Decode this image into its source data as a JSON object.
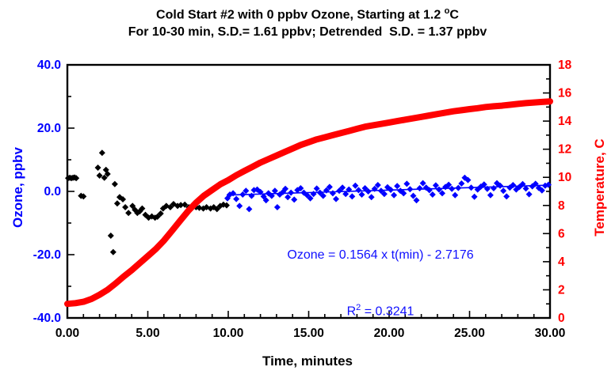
{
  "title": {
    "line1_text": "Cold Start #2 with 0 ppbv Ozone, Starting at 1.2 ",
    "line1_sup": "o",
    "line1_unit": "C",
    "line2": "For 10-30 min, S.D.= 1.61 ppbv; Detrended  S.D. = 1.37 ppbv"
  },
  "annotation": {
    "line1": "Ozone = 0.1564 x t(min) - 2.7176",
    "r_label": "R",
    "r_sup": "2",
    "r_rest": " = 0.3241"
  },
  "colors": {
    "ozone_blue": "#0000ff",
    "temperature_red": "#ff0000",
    "early_ozone_black": "#000000",
    "frame_black": "#000000"
  },
  "chart_data": {
    "type": "scatter",
    "title": "Cold Start #2 with 0 ppbv Ozone, Starting at 1.2 °C",
    "subtitle": "For 10-30 min, S.D.= 1.61 ppbv; Detrended  S.D. = 1.37 ppbv",
    "xlabel": "Time, minutes",
    "ylabel_left": "Ozone, ppbv",
    "ylabel_right": "Temperature, C",
    "xlim": [
      0,
      30
    ],
    "ylim_left": [
      -40,
      40
    ],
    "ylim_right": [
      0,
      18
    ],
    "grid": false,
    "legend": false,
    "x_major_ticks": [
      0,
      5,
      10,
      15,
      20,
      25,
      30
    ],
    "x_tick_labels": [
      "0.00",
      "5.00",
      "10.00",
      "15.00",
      "20.00",
      "25.00",
      "30.00"
    ],
    "x_minor_step": 1,
    "y_left_major_ticks": [
      40,
      20,
      0,
      -20,
      -40
    ],
    "y_left_tick_labels": [
      "40.0",
      "20.0",
      "0.0",
      "-20.0",
      "-40.0"
    ],
    "y_left_minor_step": 10,
    "y_right_major_ticks": [
      18,
      16,
      14,
      12,
      10,
      8,
      6,
      4,
      2,
      0
    ],
    "y_right_tick_labels": [
      "18",
      "16",
      "14",
      "12",
      "10",
      "8",
      "6",
      "4",
      "2",
      "0"
    ],
    "y_right_minor_step": 1,
    "series": [
      {
        "name": "ozone-0-10-min",
        "type": "scatter",
        "marker": "diamond",
        "marker_size": 4,
        "color": "#000000",
        "axis": "left",
        "points": [
          [
            0.05,
            4.2
          ],
          [
            0.15,
            4.3
          ],
          [
            0.25,
            4.2
          ],
          [
            0.35,
            4.3
          ],
          [
            0.45,
            4.4
          ],
          [
            0.55,
            4.2
          ],
          [
            0.85,
            -1.4
          ],
          [
            1.0,
            -1.6
          ],
          [
            1.9,
            7.5
          ],
          [
            2.0,
            5.0
          ],
          [
            2.16,
            12.2
          ],
          [
            2.3,
            4.3
          ],
          [
            2.4,
            6.8
          ],
          [
            2.5,
            5.5
          ],
          [
            2.7,
            -14.0
          ],
          [
            2.85,
            -19.2
          ],
          [
            2.95,
            2.3
          ],
          [
            3.1,
            -3.8
          ],
          [
            3.25,
            -1.8
          ],
          [
            3.45,
            -2.5
          ],
          [
            3.6,
            -5.0
          ],
          [
            3.8,
            -6.8
          ],
          [
            4.05,
            -4.6
          ],
          [
            4.2,
            -5.8
          ],
          [
            4.35,
            -6.8
          ],
          [
            4.5,
            -6.3
          ],
          [
            4.65,
            -5.4
          ],
          [
            4.85,
            -7.4
          ],
          [
            5.05,
            -8.3
          ],
          [
            5.25,
            -7.9
          ],
          [
            5.45,
            -8.3
          ],
          [
            5.6,
            -8.0
          ],
          [
            5.8,
            -7.0
          ],
          [
            5.95,
            -5.4
          ],
          [
            6.15,
            -4.6
          ],
          [
            6.4,
            -5.0
          ],
          [
            6.6,
            -4.0
          ],
          [
            6.85,
            -4.6
          ],
          [
            7.05,
            -4.3
          ],
          [
            7.3,
            -4.2
          ],
          [
            7.55,
            -5.0
          ],
          [
            7.8,
            -4.6
          ],
          [
            8.0,
            -5.0
          ],
          [
            8.2,
            -5.2
          ],
          [
            8.45,
            -5.4
          ],
          [
            8.65,
            -5.0
          ],
          [
            8.9,
            -5.4
          ],
          [
            9.1,
            -5.0
          ],
          [
            9.3,
            -5.6
          ],
          [
            9.5,
            -4.6
          ],
          [
            9.7,
            -4.2
          ],
          [
            9.9,
            -4.4
          ]
        ]
      },
      {
        "name": "ozone-10-30-min",
        "type": "scatter",
        "marker": "diamond",
        "marker_size": 4,
        "color": "#0000ff",
        "axis": "left",
        "points": [
          [
            9.95,
            -2.2
          ],
          [
            10.1,
            -1.0
          ],
          [
            10.3,
            -0.6
          ],
          [
            10.5,
            -2.4
          ],
          [
            10.7,
            -4.6
          ],
          [
            10.9,
            -1.0
          ],
          [
            11.1,
            0.2
          ],
          [
            11.3,
            -5.6
          ],
          [
            11.45,
            -1.4
          ],
          [
            11.6,
            0.4
          ],
          [
            11.8,
            0.6
          ],
          [
            12.0,
            -0.2
          ],
          [
            12.2,
            -1.6
          ],
          [
            12.35,
            -2.8
          ],
          [
            12.5,
            -0.6
          ],
          [
            12.7,
            -1.4
          ],
          [
            12.9,
            0.2
          ],
          [
            13.05,
            -5.0
          ],
          [
            13.2,
            -1.0
          ],
          [
            13.4,
            -0.2
          ],
          [
            13.55,
            0.8
          ],
          [
            13.7,
            -1.8
          ],
          [
            13.9,
            -0.4
          ],
          [
            14.1,
            -2.6
          ],
          [
            14.3,
            0.4
          ],
          [
            14.5,
            1.0
          ],
          [
            14.7,
            -0.4
          ],
          [
            14.9,
            -1.2
          ],
          [
            15.1,
            -2.2
          ],
          [
            15.3,
            -0.8
          ],
          [
            15.5,
            0.9
          ],
          [
            15.7,
            -0.4
          ],
          [
            15.9,
            -1.4
          ],
          [
            16.1,
            0.3
          ],
          [
            16.3,
            1.4
          ],
          [
            16.5,
            -0.6
          ],
          [
            16.7,
            -2.4
          ],
          [
            16.9,
            0.2
          ],
          [
            17.1,
            1.2
          ],
          [
            17.3,
            -0.8
          ],
          [
            17.5,
            0.6
          ],
          [
            17.7,
            -1.6
          ],
          [
            17.9,
            1.8
          ],
          [
            18.1,
            0.4
          ],
          [
            18.3,
            -1.0
          ],
          [
            18.5,
            1.0
          ],
          [
            18.7,
            0.0
          ],
          [
            18.9,
            -1.8
          ],
          [
            19.1,
            0.8
          ],
          [
            19.3,
            2.0
          ],
          [
            19.5,
            0.2
          ],
          [
            19.7,
            -0.8
          ],
          [
            19.9,
            1.3
          ],
          [
            20.1,
            0.5
          ],
          [
            20.3,
            -1.2
          ],
          [
            20.5,
            1.7
          ],
          [
            20.7,
            0.2
          ],
          [
            20.9,
            -0.6
          ],
          [
            21.1,
            2.4
          ],
          [
            21.3,
            0.7
          ],
          [
            21.5,
            -1.4
          ],
          [
            21.7,
            -2.8
          ],
          [
            21.9,
            1.0
          ],
          [
            22.1,
            2.6
          ],
          [
            22.3,
            1.2
          ],
          [
            22.5,
            0.4
          ],
          [
            22.7,
            -1.0
          ],
          [
            22.9,
            1.9
          ],
          [
            23.1,
            0.6
          ],
          [
            23.3,
            -0.6
          ],
          [
            23.5,
            1.4
          ],
          [
            23.7,
            2.1
          ],
          [
            23.9,
            0.8
          ],
          [
            24.1,
            -1.2
          ],
          [
            24.3,
            1.1
          ],
          [
            24.5,
            2.5
          ],
          [
            24.7,
            4.3
          ],
          [
            24.9,
            3.6
          ],
          [
            25.1,
            1.2
          ],
          [
            25.3,
            -1.7
          ],
          [
            25.5,
            0.6
          ],
          [
            25.7,
            1.5
          ],
          [
            25.9,
            2.2
          ],
          [
            26.1,
            0.8
          ],
          [
            26.3,
            -1.2
          ],
          [
            26.5,
            1.0
          ],
          [
            26.7,
            2.6
          ],
          [
            26.9,
            1.8
          ],
          [
            27.1,
            0.2
          ],
          [
            27.3,
            -1.6
          ],
          [
            27.5,
            1.2
          ],
          [
            27.7,
            2.0
          ],
          [
            27.9,
            0.6
          ],
          [
            28.1,
            1.4
          ],
          [
            28.3,
            2.3
          ],
          [
            28.5,
            0.9
          ],
          [
            28.7,
            -0.9
          ],
          [
            28.9,
            1.6
          ],
          [
            29.1,
            2.4
          ],
          [
            29.3,
            1.1
          ],
          [
            29.5,
            0.3
          ],
          [
            29.7,
            1.8
          ],
          [
            29.9,
            2.1
          ]
        ]
      },
      {
        "name": "ozone-trend-line",
        "type": "line",
        "color": "#0000ff",
        "axis": "left",
        "line_width": 1.6,
        "slope": 0.1564,
        "intercept": -2.7176,
        "x_range": [
          9.9,
          30
        ],
        "equation": "Ozone = 0.1564 x t(min) - 2.7176",
        "r_squared": 0.3241
      },
      {
        "name": "temperature",
        "type": "line",
        "color": "#ff0000",
        "axis": "right",
        "line_width": 8,
        "points": [
          [
            0,
            1.0
          ],
          [
            0.5,
            1.05
          ],
          [
            1,
            1.15
          ],
          [
            1.5,
            1.35
          ],
          [
            2,
            1.65
          ],
          [
            2.5,
            2.0
          ],
          [
            3,
            2.45
          ],
          [
            3.5,
            2.95
          ],
          [
            4,
            3.4
          ],
          [
            4.5,
            3.9
          ],
          [
            5,
            4.4
          ],
          [
            5.5,
            4.9
          ],
          [
            6,
            5.5
          ],
          [
            6.5,
            6.2
          ],
          [
            7,
            6.9
          ],
          [
            7.5,
            7.6
          ],
          [
            8,
            8.2
          ],
          [
            8.5,
            8.7
          ],
          [
            9,
            9.1
          ],
          [
            9.5,
            9.5
          ],
          [
            10,
            9.8
          ],
          [
            10.5,
            10.15
          ],
          [
            11,
            10.45
          ],
          [
            11.5,
            10.75
          ],
          [
            12,
            11.05
          ],
          [
            12.5,
            11.3
          ],
          [
            13,
            11.55
          ],
          [
            13.5,
            11.8
          ],
          [
            14,
            12.05
          ],
          [
            14.5,
            12.3
          ],
          [
            15,
            12.5
          ],
          [
            15.5,
            12.7
          ],
          [
            16,
            12.85
          ],
          [
            16.5,
            13.0
          ],
          [
            17,
            13.15
          ],
          [
            17.5,
            13.3
          ],
          [
            18,
            13.45
          ],
          [
            18.5,
            13.6
          ],
          [
            19,
            13.7
          ],
          [
            19.5,
            13.8
          ],
          [
            20,
            13.9
          ],
          [
            20.5,
            14.0
          ],
          [
            21,
            14.1
          ],
          [
            21.5,
            14.2
          ],
          [
            22,
            14.3
          ],
          [
            22.5,
            14.4
          ],
          [
            23,
            14.5
          ],
          [
            23.5,
            14.6
          ],
          [
            24,
            14.7
          ],
          [
            24.5,
            14.77
          ],
          [
            25,
            14.85
          ],
          [
            25.5,
            14.92
          ],
          [
            26,
            15.0
          ],
          [
            26.5,
            15.05
          ],
          [
            27,
            15.1
          ],
          [
            27.5,
            15.16
          ],
          [
            28,
            15.22
          ],
          [
            28.5,
            15.28
          ],
          [
            29,
            15.32
          ],
          [
            29.5,
            15.36
          ],
          [
            30,
            15.4
          ]
        ]
      }
    ]
  }
}
